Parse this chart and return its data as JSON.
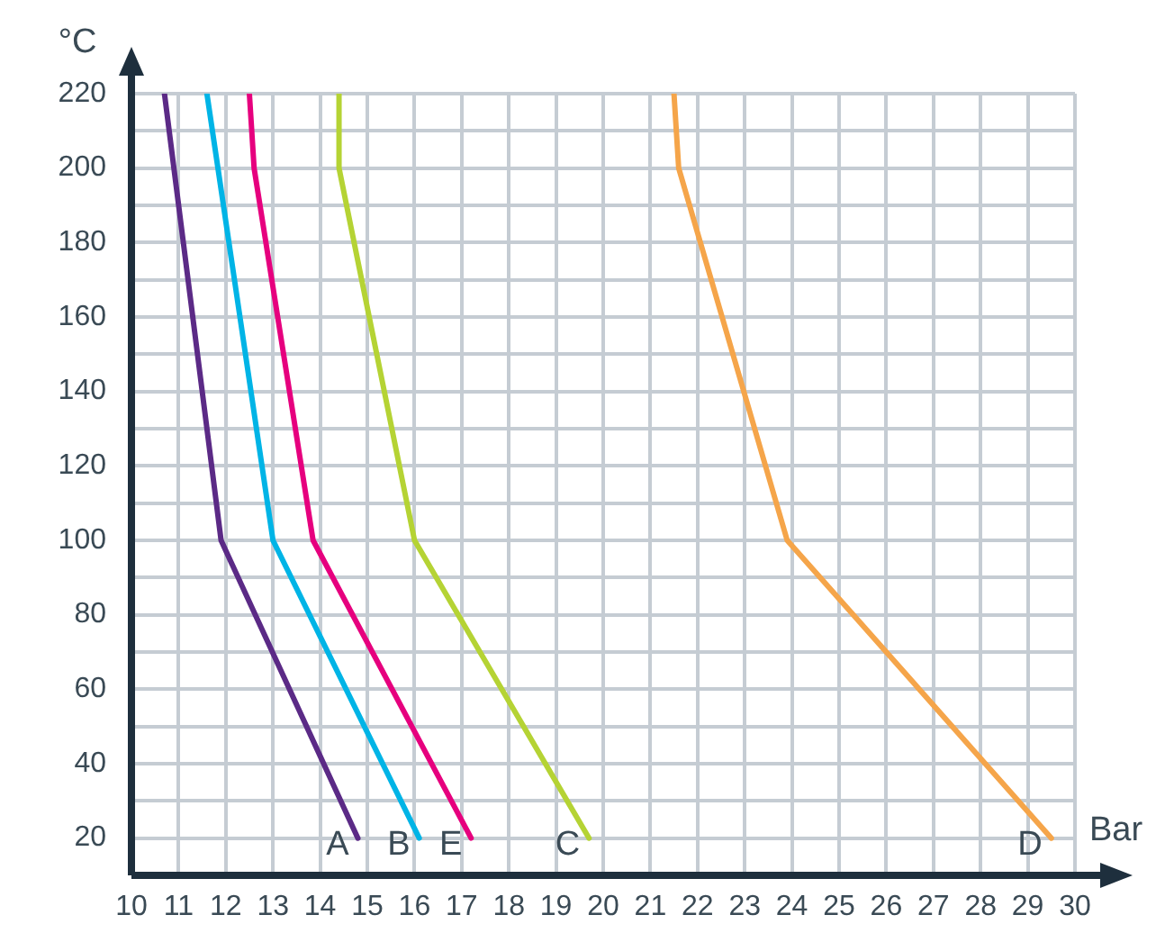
{
  "chart_data": {
    "type": "line",
    "xlabel": "Bar",
    "ylabel": "°C",
    "xlim": [
      10,
      30
    ],
    "xticks": [
      10,
      11,
      12,
      13,
      14,
      15,
      16,
      17,
      18,
      19,
      20,
      21,
      22,
      23,
      24,
      25,
      26,
      27,
      28,
      29,
      30
    ],
    "ylim": [
      10,
      220
    ],
    "yticks": [
      {
        "value": 10,
        "label": null
      },
      20,
      {
        "value": 30,
        "label": null
      },
      40,
      {
        "value": 50,
        "label": null
      },
      60,
      {
        "value": 70,
        "label": null
      },
      80,
      {
        "value": 90,
        "label": null
      },
      100,
      {
        "value": 110,
        "label": null
      },
      120,
      {
        "value": 130,
        "label": null
      },
      140,
      {
        "value": 150,
        "label": null
      },
      160,
      {
        "value": 170,
        "label": null
      },
      180,
      {
        "value": 190,
        "label": null
      },
      200,
      {
        "value": 210,
        "label": null
      },
      220
    ],
    "grid": true,
    "legend": false,
    "marker": "none",
    "line_style": "solid",
    "series": [
      {
        "name": "A",
        "color": "#5b2a86",
        "x": [
          10.7,
          11.9,
          14.8
        ],
        "values": [
          220,
          100,
          20
        ]
      },
      {
        "name": "B",
        "color": "#00b4e6",
        "x": [
          11.6,
          13.0,
          16.1
        ],
        "values": [
          220,
          100,
          20
        ]
      },
      {
        "name": "E",
        "color": "#e6007e",
        "x": [
          12.5,
          12.6,
          13.85,
          17.2
        ],
        "values": [
          220,
          200,
          100,
          20
        ]
      },
      {
        "name": "C",
        "color": "#b5d334",
        "x": [
          14.4,
          14.4,
          16.0,
          19.7
        ],
        "values": [
          220,
          200,
          100,
          20
        ]
      },
      {
        "name": "D",
        "color": "#f5a54a",
        "x": [
          21.5,
          21.6,
          23.9,
          29.5
        ],
        "values": [
          220,
          200,
          100,
          20
        ]
      }
    ]
  }
}
